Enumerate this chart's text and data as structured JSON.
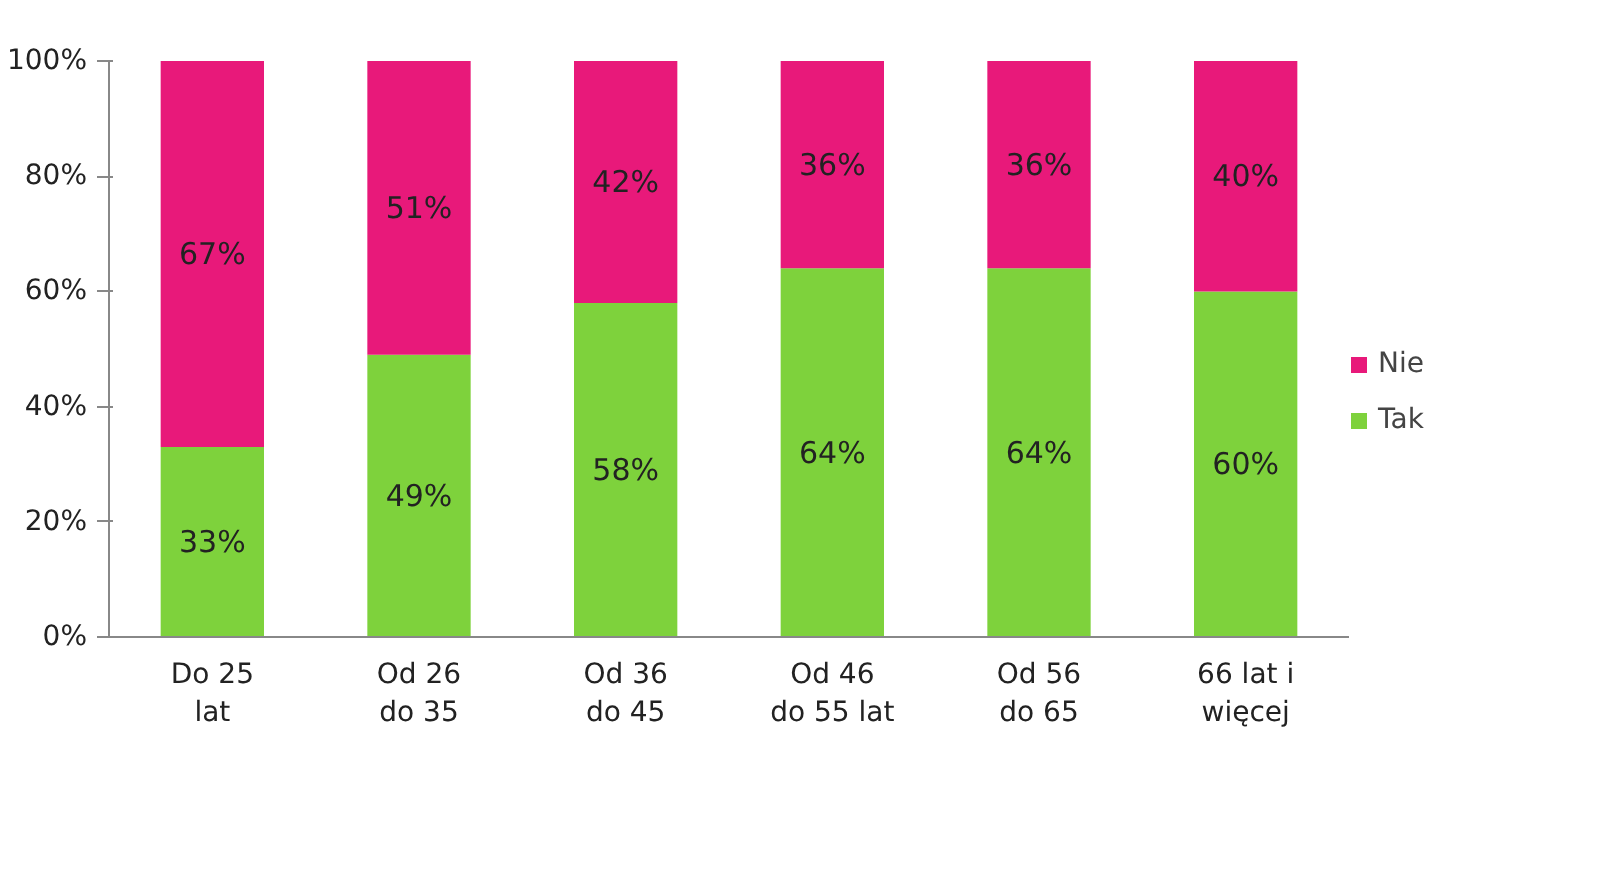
{
  "chart_data": {
    "type": "bar",
    "stacked": true,
    "categories": [
      "Do 25\nlat",
      "Od 26\ndo 35",
      "Od 36\ndo 45",
      "Od 46\ndo 55 lat",
      "Od 56\ndo 65",
      "66 lat i\nwięcej"
    ],
    "series": [
      {
        "name": "Tak",
        "color": "#7ed23c",
        "values": [
          33,
          49,
          58,
          64,
          64,
          60
        ],
        "value_labels": [
          "33%",
          "49%",
          "58%",
          "64%",
          "64%",
          "60%"
        ]
      },
      {
        "name": "Nie",
        "color": "#e8197a",
        "values": [
          67,
          51,
          42,
          36,
          36,
          40
        ],
        "value_labels": [
          "67%",
          "51%",
          "42%",
          "36%",
          "36%",
          "40%"
        ]
      }
    ],
    "ylim": [
      0,
      100
    ],
    "yticks": [
      {
        "value": 0,
        "label": "0%"
      },
      {
        "value": 20,
        "label": "20%"
      },
      {
        "value": 40,
        "label": "40%"
      },
      {
        "value": 60,
        "label": "60%"
      },
      {
        "value": 80,
        "label": "80%"
      },
      {
        "value": 100,
        "label": "100%"
      }
    ],
    "grid": false,
    "legend": "right"
  }
}
